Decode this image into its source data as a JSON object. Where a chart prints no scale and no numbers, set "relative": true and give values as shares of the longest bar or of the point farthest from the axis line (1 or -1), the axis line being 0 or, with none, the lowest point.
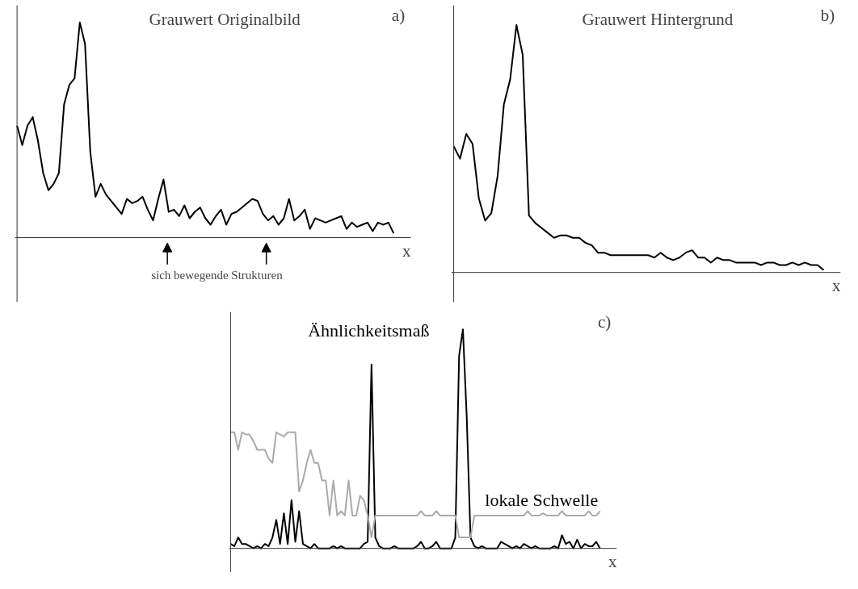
{
  "chart_data": [
    {
      "type": "line",
      "title": "Grauwert Originalbild",
      "xlabel": "x",
      "relative": true,
      "annotations": [
        "a)",
        "sich bewegende Strukturen"
      ],
      "categories": [
        null,
        null,
        null,
        null,
        null,
        null,
        null,
        null,
        null,
        null,
        null,
        null,
        null,
        null,
        null,
        null,
        null,
        null,
        null,
        null,
        null,
        null,
        null,
        null,
        null,
        null,
        null,
        null,
        null,
        null,
        null,
        null,
        null,
        null,
        null,
        null,
        null,
        null,
        null,
        null,
        null,
        null,
        null,
        null,
        null,
        null,
        null,
        null,
        null,
        null,
        null,
        null,
        null,
        null,
        null,
        null,
        null,
        null,
        null,
        null,
        null,
        null,
        null,
        null,
        null,
        null,
        null,
        null,
        null,
        null,
        null,
        null,
        null
      ],
      "series": [
        {
          "color": "#000000",
          "values": [
            0.52,
            0.43,
            0.52,
            0.56,
            0.45,
            0.3,
            0.22,
            0.25,
            0.3,
            0.62,
            0.71,
            0.74,
            1.0,
            0.9,
            0.4,
            0.19,
            0.25,
            0.2,
            0.17,
            0.14,
            0.11,
            0.18,
            0.16,
            0.17,
            0.19,
            0.13,
            0.08,
            0.18,
            0.27,
            0.12,
            0.13,
            0.1,
            0.15,
            0.09,
            0.12,
            0.14,
            0.09,
            0.06,
            0.1,
            0.13,
            0.06,
            0.11,
            0.12,
            0.14,
            0.16,
            0.18,
            0.17,
            0.11,
            0.08,
            0.1,
            0.06,
            0.09,
            0.18,
            0.08,
            0.1,
            0.13,
            0.04,
            0.09,
            0.08,
            0.07,
            0.08,
            0.09,
            0.1,
            0.04,
            0.07,
            0.05,
            0.06,
            0.07,
            0.03,
            0.07,
            0.06,
            0.07,
            0.02
          ]
        }
      ]
    },
    {
      "type": "line",
      "title": "Grauwert Hintergrund",
      "xlabel": "x",
      "relative": true,
      "annotations": [
        "b)"
      ],
      "categories": [
        null,
        null,
        null,
        null,
        null,
        null,
        null,
        null,
        null,
        null,
        null,
        null,
        null,
        null,
        null,
        null,
        null,
        null,
        null,
        null,
        null,
        null,
        null,
        null,
        null,
        null,
        null,
        null,
        null,
        null,
        null,
        null,
        null,
        null,
        null,
        null,
        null,
        null,
        null,
        null,
        null,
        null,
        null,
        null,
        null,
        null,
        null,
        null,
        null,
        null,
        null,
        null,
        null,
        null,
        null,
        null,
        null,
        null,
        null,
        null
      ],
      "series": [
        {
          "color": "#000000",
          "values": [
            0.51,
            0.46,
            0.56,
            0.52,
            0.3,
            0.21,
            0.24,
            0.39,
            0.68,
            0.78,
            1.0,
            0.88,
            0.23,
            0.2,
            0.18,
            0.16,
            0.14,
            0.15,
            0.15,
            0.14,
            0.14,
            0.12,
            0.11,
            0.08,
            0.08,
            0.07,
            0.07,
            0.07,
            0.07,
            0.07,
            0.07,
            0.07,
            0.06,
            0.08,
            0.06,
            0.05,
            0.06,
            0.08,
            0.09,
            0.06,
            0.06,
            0.04,
            0.06,
            0.05,
            0.05,
            0.04,
            0.04,
            0.04,
            0.04,
            0.03,
            0.04,
            0.04,
            0.03,
            0.03,
            0.04,
            0.03,
            0.04,
            0.03,
            0.03,
            0.01
          ]
        }
      ]
    },
    {
      "type": "line",
      "xlabel": "x",
      "relative": true,
      "annotations": [
        "c)"
      ],
      "categories": [
        null,
        null,
        null,
        null,
        null,
        null,
        null,
        null,
        null,
        null,
        null,
        null,
        null,
        null,
        null,
        null,
        null,
        null,
        null,
        null,
        null,
        null,
        null,
        null,
        null,
        null,
        null,
        null,
        null,
        null,
        null,
        null,
        null,
        null,
        null,
        null,
        null,
        null,
        null,
        null,
        null,
        null,
        null,
        null,
        null,
        null,
        null,
        null,
        null,
        null,
        null,
        null,
        null,
        null,
        null,
        null,
        null,
        null,
        null,
        null,
        null,
        null,
        null,
        null,
        null,
        null,
        null,
        null,
        null,
        null,
        null,
        null,
        null,
        null,
        null,
        null,
        null,
        null,
        null,
        null,
        null,
        null,
        null,
        null,
        null,
        null,
        null,
        null,
        null,
        null,
        null,
        null,
        null,
        null,
        null,
        null,
        null,
        null
      ],
      "series": [
        {
          "name": "Ähnlichkeitsmaß",
          "color": "#000000",
          "values": [
            0.02,
            0.01,
            0.05,
            0.02,
            0.02,
            0.01,
            0.0,
            0.01,
            0.0,
            0.02,
            0.01,
            0.05,
            0.13,
            0.02,
            0.16,
            0.02,
            0.22,
            0.03,
            0.17,
            0.02,
            0.01,
            0.0,
            0.02,
            0.0,
            0.0,
            0.0,
            0.0,
            0.01,
            0.0,
            0.01,
            0.0,
            0.0,
            0.0,
            0.0,
            0.0,
            0.02,
            0.03,
            0.84,
            0.05,
            0.01,
            0.0,
            0.0,
            0.0,
            0.01,
            0.0,
            0.0,
            0.0,
            0.0,
            0.0,
            0.01,
            0.03,
            0.0,
            0.0,
            0.01,
            0.03,
            0.0,
            0.0,
            0.0,
            0.0,
            0.05,
            0.88,
            1.0,
            0.6,
            0.05,
            0.01,
            0.0,
            0.01,
            0.0,
            0.0,
            0.0,
            0.0,
            0.03,
            0.02,
            0.01,
            0.0,
            0.01,
            0.0,
            0.02,
            0.01,
            0.0,
            0.01,
            0.0,
            0.0,
            0.0,
            0.0,
            0.01,
            0.0,
            0.06,
            0.02,
            0.03,
            0.0,
            0.04,
            0.0,
            0.02,
            0.01,
            0.01,
            0.03,
            0.0
          ]
        },
        {
          "name": "lokale Schwelle",
          "color": "#aaaaaa",
          "values": [
            0.53,
            0.53,
            0.45,
            0.53,
            0.52,
            0.52,
            0.49,
            0.45,
            0.45,
            0.45,
            0.41,
            0.39,
            0.53,
            0.52,
            0.51,
            0.53,
            0.53,
            0.53,
            0.26,
            0.31,
            0.39,
            0.45,
            0.39,
            0.39,
            0.31,
            0.31,
            0.15,
            0.31,
            0.15,
            0.17,
            0.15,
            0.31,
            0.15,
            0.15,
            0.24,
            0.22,
            0.15,
            0.05,
            0.15,
            0.15,
            0.15,
            0.15,
            0.15,
            0.15,
            0.15,
            0.15,
            0.15,
            0.15,
            0.15,
            0.15,
            0.17,
            0.15,
            0.15,
            0.15,
            0.17,
            0.15,
            0.15,
            0.15,
            0.15,
            0.15,
            0.05,
            0.05,
            0.05,
            0.05,
            0.15,
            0.15,
            0.15,
            0.15,
            0.15,
            0.15,
            0.15,
            0.15,
            0.15,
            0.15,
            0.15,
            0.15,
            0.15,
            0.15,
            0.17,
            0.15,
            0.15,
            0.15,
            0.16,
            0.15,
            0.15,
            0.15,
            0.15,
            0.17,
            0.15,
            0.15,
            0.15,
            0.15,
            0.15,
            0.15,
            0.17,
            0.15,
            0.15,
            0.17
          ]
        }
      ]
    }
  ]
}
